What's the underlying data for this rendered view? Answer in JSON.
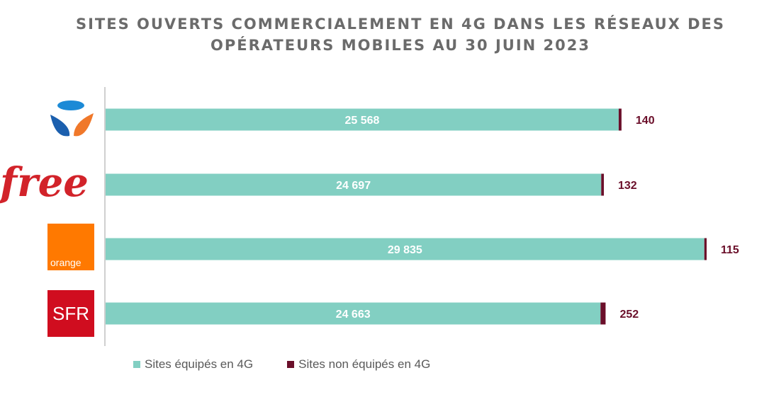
{
  "colors": {
    "equipped": "#82cfc2",
    "not_equipped": "#6b0f2a",
    "axis": "#bfbfbf"
  },
  "chart_data": {
    "type": "bar",
    "orientation": "horizontal",
    "stacked": true,
    "title_lines": [
      "SITES OUVERTS COMMERCIALEMENT EN 4G DANS LES RÉSEAUX DES",
      "OPÉRATEURS MOBILES AU 30 JUIN 2023"
    ],
    "categories": [
      "Bouygues Telecom",
      "Free",
      "Orange",
      "SFR"
    ],
    "logos": [
      {
        "name": "bouygues-logo",
        "text": ""
      },
      {
        "name": "free-logo",
        "text": "free"
      },
      {
        "name": "orange-logo",
        "text": "orange"
      },
      {
        "name": "sfr-logo",
        "text": "SFR"
      }
    ],
    "series": [
      {
        "name": "Sites équipés en 4G",
        "values": [
          25568,
          24697,
          29835,
          24663
        ],
        "labels": [
          "25 568",
          "24 697",
          "29 835",
          "24 663"
        ]
      },
      {
        "name": "Sites non équipés en 4G",
        "values": [
          140,
          132,
          115,
          252
        ],
        "labels": [
          "140",
          "132",
          "115",
          "252"
        ]
      }
    ],
    "xlim": [
      0,
      29950
    ],
    "grid": false,
    "legend_position": "bottom"
  }
}
